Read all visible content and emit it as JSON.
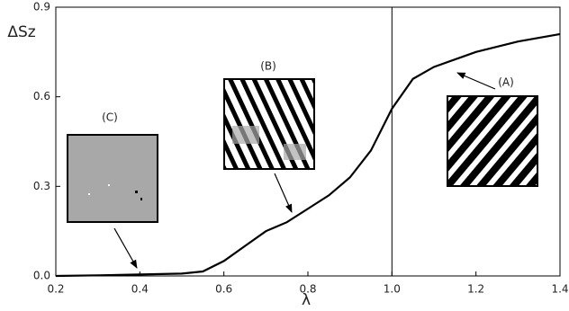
{
  "chart_data": {
    "type": "line",
    "x_label": "λ",
    "y_label": "ΔSz",
    "annotations": [
      "(A)",
      "(B)",
      "(C)"
    ],
    "xlim": [
      0.2,
      1.4
    ],
    "ylim": [
      0,
      0.9
    ],
    "xticks": [
      0.2,
      0.4,
      0.6,
      0.8,
      {
        "value": 1,
        "label": "1.0"
      },
      1.2,
      1.4
    ],
    "yticks": [
      {
        "value": 0,
        "label": "0.0"
      },
      0.3,
      0.6,
      0.9
    ],
    "vlines": [
      1
    ],
    "series": [
      {
        "color": "#000000",
        "x": [
          0.2,
          0.3,
          0.4,
          0.5,
          0.55,
          0.6,
          0.65,
          0.7,
          0.75,
          0.8,
          0.85,
          0.9,
          0.95,
          1.0,
          1.05,
          1.1,
          1.2,
          1.3,
          1.4
        ],
        "values": [
          0.0,
          0.002,
          0.005,
          0.008,
          0.015,
          0.05,
          0.1,
          0.15,
          0.18,
          0.225,
          0.27,
          0.33,
          0.42,
          0.56,
          0.66,
          0.7,
          0.75,
          0.785,
          0.81
        ]
      }
    ]
  }
}
